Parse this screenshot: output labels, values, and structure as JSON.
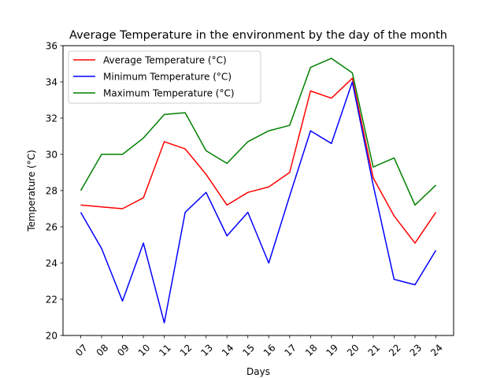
{
  "chart_data": {
    "type": "line",
    "title": "Average Temperature in the environment by the day of the month",
    "xlabel": "Days",
    "ylabel": "Temperature (°C)",
    "categories": [
      "07",
      "08",
      "09",
      "10",
      "11",
      "12",
      "13",
      "14",
      "15",
      "16",
      "17",
      "18",
      "19",
      "20",
      "21",
      "22",
      "23",
      "24"
    ],
    "ylim": [
      20,
      36
    ],
    "yticks": [
      20,
      22,
      24,
      26,
      28,
      30,
      32,
      34,
      36
    ],
    "grid": false,
    "legend_position": "upper-left",
    "series": [
      {
        "name": "Average Temperature (°C)",
        "color": "#ff0000",
        "values": [
          27.2,
          27.1,
          27.0,
          27.6,
          30.7,
          30.3,
          28.9,
          27.2,
          27.9,
          28.2,
          29.0,
          33.5,
          33.1,
          34.2,
          28.7,
          26.6,
          25.1,
          26.8
        ]
      },
      {
        "name": "Minimum Temperature (°C)",
        "color": "#0000ff",
        "values": [
          26.8,
          24.8,
          21.9,
          25.1,
          20.7,
          26.8,
          27.9,
          25.5,
          26.8,
          24.0,
          27.7,
          31.3,
          30.6,
          34.0,
          28.3,
          23.1,
          22.8,
          24.7
        ]
      },
      {
        "name": "Maximum Temperature (°C)",
        "color": "#008000",
        "values": [
          28.0,
          30.0,
          30.0,
          30.9,
          32.2,
          32.3,
          30.2,
          29.5,
          30.7,
          31.3,
          31.6,
          34.8,
          35.3,
          34.5,
          29.3,
          29.8,
          27.2,
          28.3
        ]
      }
    ]
  }
}
